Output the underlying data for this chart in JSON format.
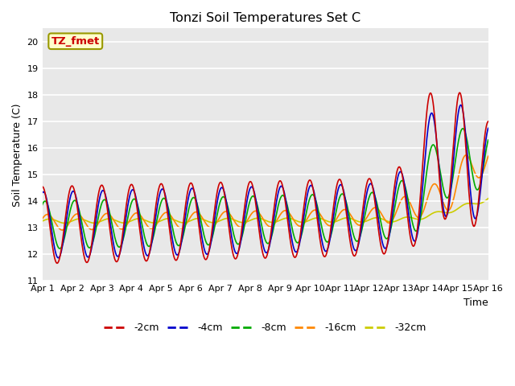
{
  "title": "Tonzi Soil Temperatures Set C",
  "xlabel": "Time",
  "ylabel": "Soil Temperature (C)",
  "ylim": [
    11.0,
    20.5
  ],
  "xlim": [
    0,
    15
  ],
  "yticks": [
    11.0,
    12.0,
    13.0,
    14.0,
    15.0,
    16.0,
    17.0,
    18.0,
    19.0,
    20.0
  ],
  "xtick_labels": [
    "Apr 1",
    "Apr 2",
    "Apr 3",
    "Apr 4",
    "Apr 5",
    "Apr 6",
    "Apr 7",
    "Apr 8",
    "Apr 9",
    "Apr 10",
    "Apr 11",
    "Apr 12",
    "Apr 13",
    "Apr 14",
    "Apr 15",
    "Apr 16"
  ],
  "series": {
    "-2cm": {
      "color": "#cc0000",
      "lw": 1.2
    },
    "-4cm": {
      "color": "#0000cc",
      "lw": 1.2
    },
    "-8cm": {
      "color": "#00aa00",
      "lw": 1.2
    },
    "-16cm": {
      "color": "#ff8800",
      "lw": 1.2
    },
    "-32cm": {
      "color": "#cccc00",
      "lw": 1.2
    }
  },
  "label_box": {
    "text": "TZ_fmet",
    "facecolor": "#ffffcc",
    "edgecolor": "#999900",
    "textcolor": "#cc0000"
  },
  "plot_bg_color": "#e8e8e8",
  "grid_color": "#ffffff"
}
